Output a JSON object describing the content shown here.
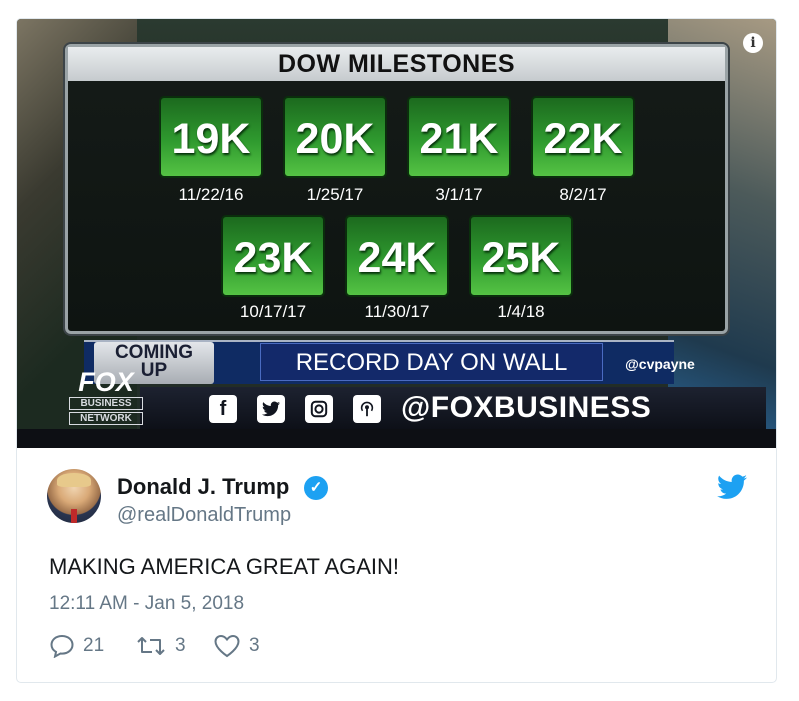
{
  "media": {
    "board_title": "DOW MILESTONES",
    "milestones": [
      {
        "value": "19K",
        "date": "11/22/16"
      },
      {
        "value": "20K",
        "date": "1/25/17"
      },
      {
        "value": "21K",
        "date": "3/1/17"
      },
      {
        "value": "22K",
        "date": "8/2/17"
      },
      {
        "value": "23K",
        "date": "10/17/17"
      },
      {
        "value": "24K",
        "date": "11/30/17"
      },
      {
        "value": "25K",
        "date": "1/4/18"
      }
    ],
    "coming_up_line1": "COMING",
    "coming_up_line2": "UP",
    "headline": "RECORD DAY ON WALL STREET",
    "anchor_handle": "@cvpayne",
    "network_logo": "FOX",
    "network_sub1": "BUSINESS",
    "network_sub2": "NETWORK",
    "social_handle": "@FOXBUSINESS",
    "social_icons": [
      "facebook-icon",
      "twitter-icon",
      "instagram-icon",
      "podcast-icon"
    ],
    "info_icon": "i"
  },
  "tweet": {
    "display_name": "Donald J. Trump",
    "handle": "@realDonaldTrump",
    "text": "MAKING AMERICA GREAT AGAIN!",
    "timestamp": "12:11 AM - Jan 5, 2018",
    "replies": "21",
    "retweets": "3",
    "likes": "3"
  },
  "colors": {
    "brand_blue": "#1da1f2",
    "milestone_green": "#2f9a2f",
    "muted_text": "#657786"
  }
}
